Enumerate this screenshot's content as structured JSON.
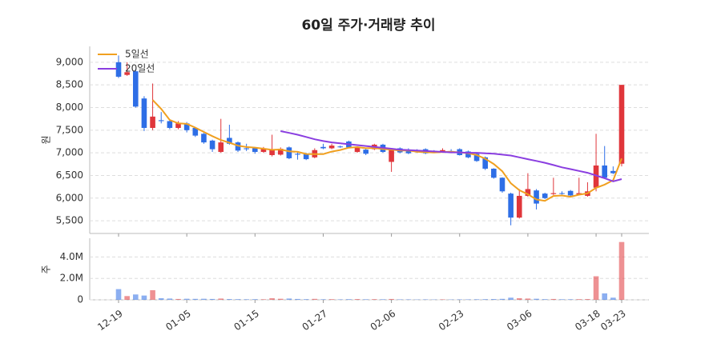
{
  "chart_data": {
    "type": "candlestick",
    "title": "60일 주가·거래량 추이",
    "ylabel": "원",
    "y2label": "주",
    "categories": [
      "12-19",
      null,
      null,
      null,
      null,
      null,
      null,
      null,
      "01-05",
      null,
      null,
      null,
      null,
      null,
      null,
      null,
      "01-15",
      null,
      null,
      null,
      null,
      null,
      null,
      null,
      "01-27",
      null,
      null,
      null,
      null,
      null,
      null,
      null,
      "02-06",
      null,
      null,
      null,
      null,
      null,
      null,
      null,
      "02-23",
      null,
      null,
      null,
      null,
      null,
      null,
      null,
      "03-06",
      null,
      null,
      null,
      null,
      null,
      null,
      null,
      "03-18",
      null,
      null,
      "03-23"
    ],
    "open": [
      9000,
      8720,
      8800,
      8200,
      7550,
      7720,
      7700,
      7550,
      7650,
      7550,
      7420,
      7270,
      7020,
      7330,
      7230,
      7100,
      7100,
      7020,
      6950,
      6960,
      7120,
      6980,
      6970,
      6900,
      7130,
      7100,
      7140,
      7250,
      7020,
      7070,
      7080,
      7180,
      6800,
      7100,
      7070,
      7040,
      7080,
      7030,
      7010,
      7040,
      7080,
      7030,
      6980,
      6900,
      6650,
      6450,
      6100,
      5570,
      6050,
      6170,
      6100,
      6090,
      6110,
      6160,
      6080,
      6050,
      6230,
      6720,
      6600,
      6760
    ],
    "high": [
      9150,
      9000,
      8850,
      8250,
      8530,
      7900,
      7720,
      7700,
      7680,
      7570,
      7440,
      7290,
      7750,
      7620,
      7250,
      7200,
      7120,
      7130,
      7400,
      7120,
      7140,
      7020,
      7000,
      7100,
      7200,
      7200,
      7160,
      7270,
      7140,
      7100,
      7200,
      7200,
      7100,
      7120,
      7100,
      7080,
      7100,
      7060,
      7100,
      7080,
      7100,
      7050,
      7000,
      6920,
      6660,
      6460,
      6120,
      6200,
      6550,
      6200,
      6120,
      6450,
      6150,
      6180,
      6450,
      6350,
      7420,
      7150,
      6700,
      8500
    ],
    "low": [
      8650,
      8700,
      8000,
      7480,
      7500,
      7650,
      7520,
      7520,
      7450,
      7350,
      7200,
      7020,
      7000,
      7180,
      7020,
      7040,
      6980,
      7000,
      6920,
      6940,
      6860,
      6850,
      6840,
      6880,
      7080,
      7080,
      7110,
      7100,
      7000,
      6950,
      7060,
      7000,
      6580,
      6990,
      6970,
      7000,
      6970,
      7000,
      7000,
      7010,
      6940,
      6880,
      6800,
      6620,
      6430,
      6120,
      5400,
      5550,
      6030,
      5750,
      5980,
      6070,
      6080,
      6040,
      6060,
      6030,
      6150,
      6430,
      6530,
      6700
    ],
    "close": [
      8680,
      8780,
      8020,
      7550,
      7800,
      7700,
      7550,
      7650,
      7500,
      7380,
      7230,
      7080,
      7230,
      7200,
      7050,
      7080,
      7020,
      7100,
      7080,
      7090,
      6880,
      6960,
      6860,
      7060,
      7100,
      7160,
      7130,
      7120,
      7120,
      6980,
      7180,
      7020,
      7060,
      7010,
      6990,
      7030,
      6990,
      7020,
      7060,
      7030,
      6950,
      6900,
      6820,
      6650,
      6450,
      6150,
      5570,
      6050,
      6200,
      5880,
      6000,
      6110,
      6100,
      6060,
      6110,
      6150,
      6720,
      6450,
      6550,
      8500
    ],
    "volume": [
      1000000,
      350000,
      500000,
      400000,
      900000,
      150000,
      120000,
      80000,
      100000,
      90000,
      100000,
      80000,
      120000,
      70000,
      60000,
      50000,
      60000,
      50000,
      150000,
      100000,
      120000,
      80000,
      60000,
      90000,
      50000,
      60000,
      40000,
      60000,
      70000,
      50000,
      60000,
      50000,
      80000,
      40000,
      40000,
      30000,
      40000,
      30000,
      40000,
      30000,
      40000,
      40000,
      50000,
      60000,
      70000,
      90000,
      200000,
      150000,
      120000,
      100000,
      60000,
      80000,
      50000,
      50000,
      60000,
      70000,
      2200000,
      600000,
      200000,
      5400000
    ],
    "up_color": "#e0363b",
    "down_color": "#2e6ee6",
    "series": [
      {
        "name": "5일선",
        "color": "#f0a020",
        "values": [
          null,
          null,
          null,
          null,
          8166,
          7970,
          7724,
          7650,
          7640,
          7556,
          7462,
          7368,
          7284,
          7224,
          7158,
          7128,
          7116,
          7090,
          7066,
          7074,
          7034,
          7022,
          6974,
          6970,
          6972,
          7028,
          7062,
          7114,
          7126,
          7102,
          7106,
          7084,
          7072,
          7050,
          7052,
          7022,
          7016,
          7008,
          7018,
          7026,
          7010,
          6992,
          6952,
          6870,
          6754,
          6594,
          6328,
          6174,
          6084,
          5970,
          5940,
          6048,
          6058,
          6030,
          6076,
          6106,
          6228,
          6298,
          6396,
          6874
        ]
      },
      {
        "name": "20일선",
        "color": "#8a3ee0",
        "values": [
          null,
          null,
          null,
          null,
          null,
          null,
          null,
          null,
          null,
          null,
          null,
          null,
          null,
          null,
          null,
          null,
          null,
          null,
          null,
          7480,
          7440,
          7400,
          7350,
          7300,
          7260,
          7230,
          7210,
          7190,
          7170,
          7150,
          7130,
          7110,
          7090,
          7070,
          7060,
          7050,
          7040,
          7030,
          7020,
          7010,
          7010,
          7000,
          7000,
          6990,
          6980,
          6960,
          6940,
          6900,
          6860,
          6820,
          6780,
          6730,
          6680,
          6640,
          6600,
          6560,
          6500,
          6440,
          6370,
          6420
        ]
      }
    ],
    "ylim": [
      5220,
      9350
    ],
    "yticks": [
      {
        "value": 5500,
        "label": "5,500"
      },
      {
        "value": 6000,
        "label": "6,000"
      },
      {
        "value": 6500,
        "label": "6,500"
      },
      {
        "value": 7000,
        "label": "7,000"
      },
      {
        "value": 7500,
        "label": "7,500"
      },
      {
        "value": 8000,
        "label": "8,000"
      },
      {
        "value": 8500,
        "label": "8,500"
      },
      {
        "value": 9000,
        "label": "9,000"
      }
    ],
    "y2lim": [
      0,
      5750000
    ],
    "y2ticks": [
      0,
      {
        "value": 2000000,
        "label": "2.0M"
      },
      {
        "value": 4000000,
        "label": "4.0M"
      }
    ],
    "grid": true,
    "legend": "upper left"
  }
}
